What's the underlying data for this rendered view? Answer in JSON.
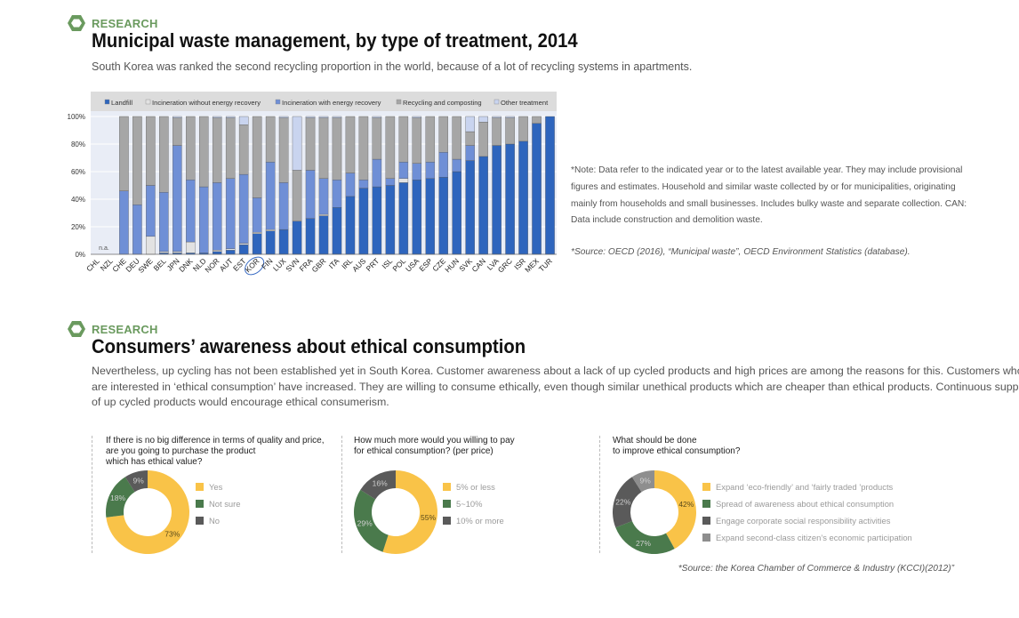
{
  "section1": {
    "tag": "RESEARCH",
    "title": "Municipal waste management, by type of treatment, 2014",
    "subtitle": "South Korea was ranked the second recycling proportion in the world, because of a lot of recycling systems in apartments."
  },
  "note": {
    "lines": [
      "*Note: Data refer to the indicated year or to the latest available year. They may include provisional",
      "figures and estimates. Household and similar waste collected by or for municipalities, originating",
      "mainly from households and small businesses. Includes bulky waste and separate collection. CAN:",
      "Data include construction and demolition waste."
    ],
    "source": "*Source: OECD (2016), “Municipal waste”, OECD Environment Statistics (database)."
  },
  "section2": {
    "tag": "RESEARCH",
    "title": "Consumers’ awareness about ethical consumption",
    "paragraph": [
      "Nevertheless, up cycling has not been established yet in South Korea. Customer awareness about a lack of up cycled products and high prices are among the reasons for this. Customers who",
      "are interested in ‘ethical consumption’ have increased. They are willing to consume ethically, even though similar unethical products which are cheaper than ethical products. Continuous supplies",
      "of up cycled products would encourage ethical consumerism."
    ],
    "source": "*Source: the Korea Chamber of Commerce & Industry (KCCI)(2012)”"
  },
  "colors": {
    "accent_green": "#6a9a5e",
    "landfill": "#2e65bd",
    "incin_without": "#e2e2e2",
    "incin_with": "#6f8fd6",
    "recycling": "#a6a6a6",
    "other": "#c9d4ef",
    "donut_yellow": "#f9c348",
    "donut_green": "#4a7a4c",
    "donut_darkgray": "#5a5a5a",
    "donut_gray": "#8e8e8e"
  },
  "chart_data": [
    {
      "type": "bar",
      "stacked": true,
      "categories": [
        "CHL",
        "NZL",
        "CHE",
        "DEU",
        "SWE",
        "BEL",
        "JPN",
        "DNK",
        "NLD",
        "NOR",
        "AUT",
        "EST",
        "KOR",
        "FIN",
        "LUX",
        "SVN",
        "FRA",
        "GBR",
        "ITA",
        "IRL",
        "AUS",
        "PRT",
        "ISL",
        "POL",
        "USA",
        "ESP",
        "CZE",
        "HUN",
        "SVK",
        "CAN",
        "LVA",
        "GRC",
        "ISR",
        "MEX",
        "TUR"
      ],
      "highlight_category": "KOR",
      "na_label": "n.a.",
      "na_categories": [
        "CHL",
        "NZL"
      ],
      "ylim": [
        0,
        100
      ],
      "yticks": [
        "0%",
        "20%",
        "40%",
        "60%",
        "80%",
        "100%"
      ],
      "legend": [
        "Landfill",
        "Incineration without energy recovery",
        "Incineration with energy recovery",
        "Recycling and composting",
        "Other treatment"
      ],
      "legend_position": "top",
      "series": [
        {
          "name": "Landfill",
          "values": [
            0,
            0,
            0,
            0,
            0,
            1,
            1,
            1,
            1,
            2,
            3,
            7,
            15,
            17,
            18,
            24,
            26,
            28,
            34,
            42,
            48,
            49,
            50,
            52,
            54,
            55,
            56,
            60,
            68,
            71,
            79,
            80,
            82,
            95,
            100
          ]
        },
        {
          "name": "Incineration without energy recovery",
          "values": [
            0,
            0,
            0,
            0,
            13,
            1,
            1,
            8,
            0,
            1,
            1,
            1,
            1,
            1,
            0,
            0,
            0,
            1,
            0,
            0,
            0,
            0,
            0,
            3,
            0,
            0,
            0,
            0,
            0,
            0,
            0,
            0,
            0,
            0,
            0
          ]
        },
        {
          "name": "Incineration with energy recovery",
          "values": [
            0,
            0,
            46,
            36,
            37,
            43,
            77,
            45,
            48,
            49,
            51,
            50,
            25,
            49,
            34,
            0,
            35,
            26,
            20,
            17,
            6,
            20,
            5,
            12,
            12,
            12,
            18,
            9,
            11,
            0,
            0,
            0,
            0,
            0,
            0
          ]
        },
        {
          "name": "Recycling and composting",
          "values": [
            0,
            0,
            54,
            64,
            50,
            55,
            20,
            46,
            51,
            47,
            44,
            36,
            59,
            33,
            47,
            37,
            38,
            44,
            45,
            41,
            46,
            30,
            45,
            33,
            33,
            33,
            26,
            31,
            10,
            25,
            20,
            19,
            18,
            5,
            0
          ]
        },
        {
          "name": "Other treatment",
          "values": [
            0,
            0,
            0,
            0,
            0,
            0,
            1,
            0,
            0,
            1,
            1,
            6,
            0,
            0,
            1,
            39,
            1,
            1,
            1,
            0,
            0,
            1,
            0,
            0,
            1,
            0,
            0,
            0,
            11,
            4,
            1,
            1,
            0,
            0,
            0
          ]
        }
      ]
    },
    {
      "type": "pie",
      "donut": true,
      "title": [
        "If there is no big difference in terms of quality and price,",
        "are you going to purchase the product",
        "which has ethical value?"
      ],
      "labels": [
        "Yes",
        "Not sure",
        "No"
      ],
      "values": [
        73,
        18,
        9
      ],
      "value_labels": [
        "73%",
        "18%",
        "9%"
      ],
      "colors": [
        "#f9c348",
        "#4a7a4c",
        "#5a5a5a"
      ]
    },
    {
      "type": "pie",
      "donut": true,
      "title": [
        "How much more would you willing to pay",
        "for ethical consumption? (per price)"
      ],
      "labels": [
        "5% or less",
        "5~10%",
        "10% or more"
      ],
      "values": [
        55,
        29,
        16
      ],
      "value_labels": [
        "55%",
        "29%",
        "16%"
      ],
      "colors": [
        "#f9c348",
        "#4a7a4c",
        "#5a5a5a"
      ]
    },
    {
      "type": "pie",
      "donut": true,
      "title": [
        "What should be done",
        "to improve ethical consumption?"
      ],
      "labels": [
        "Expand ‘eco-friendly’ and ‘fairly traded ’products",
        "Spread of awareness about ethical consumption",
        "Engage corporate social responsibility activities",
        "Expand second-class citizen’s economic participation"
      ],
      "values": [
        42,
        27,
        22,
        9
      ],
      "value_labels": [
        "42%",
        "27%",
        "22%",
        "9%"
      ],
      "colors": [
        "#f9c348",
        "#4a7a4c",
        "#5a5a5a",
        "#8e8e8e"
      ]
    }
  ]
}
